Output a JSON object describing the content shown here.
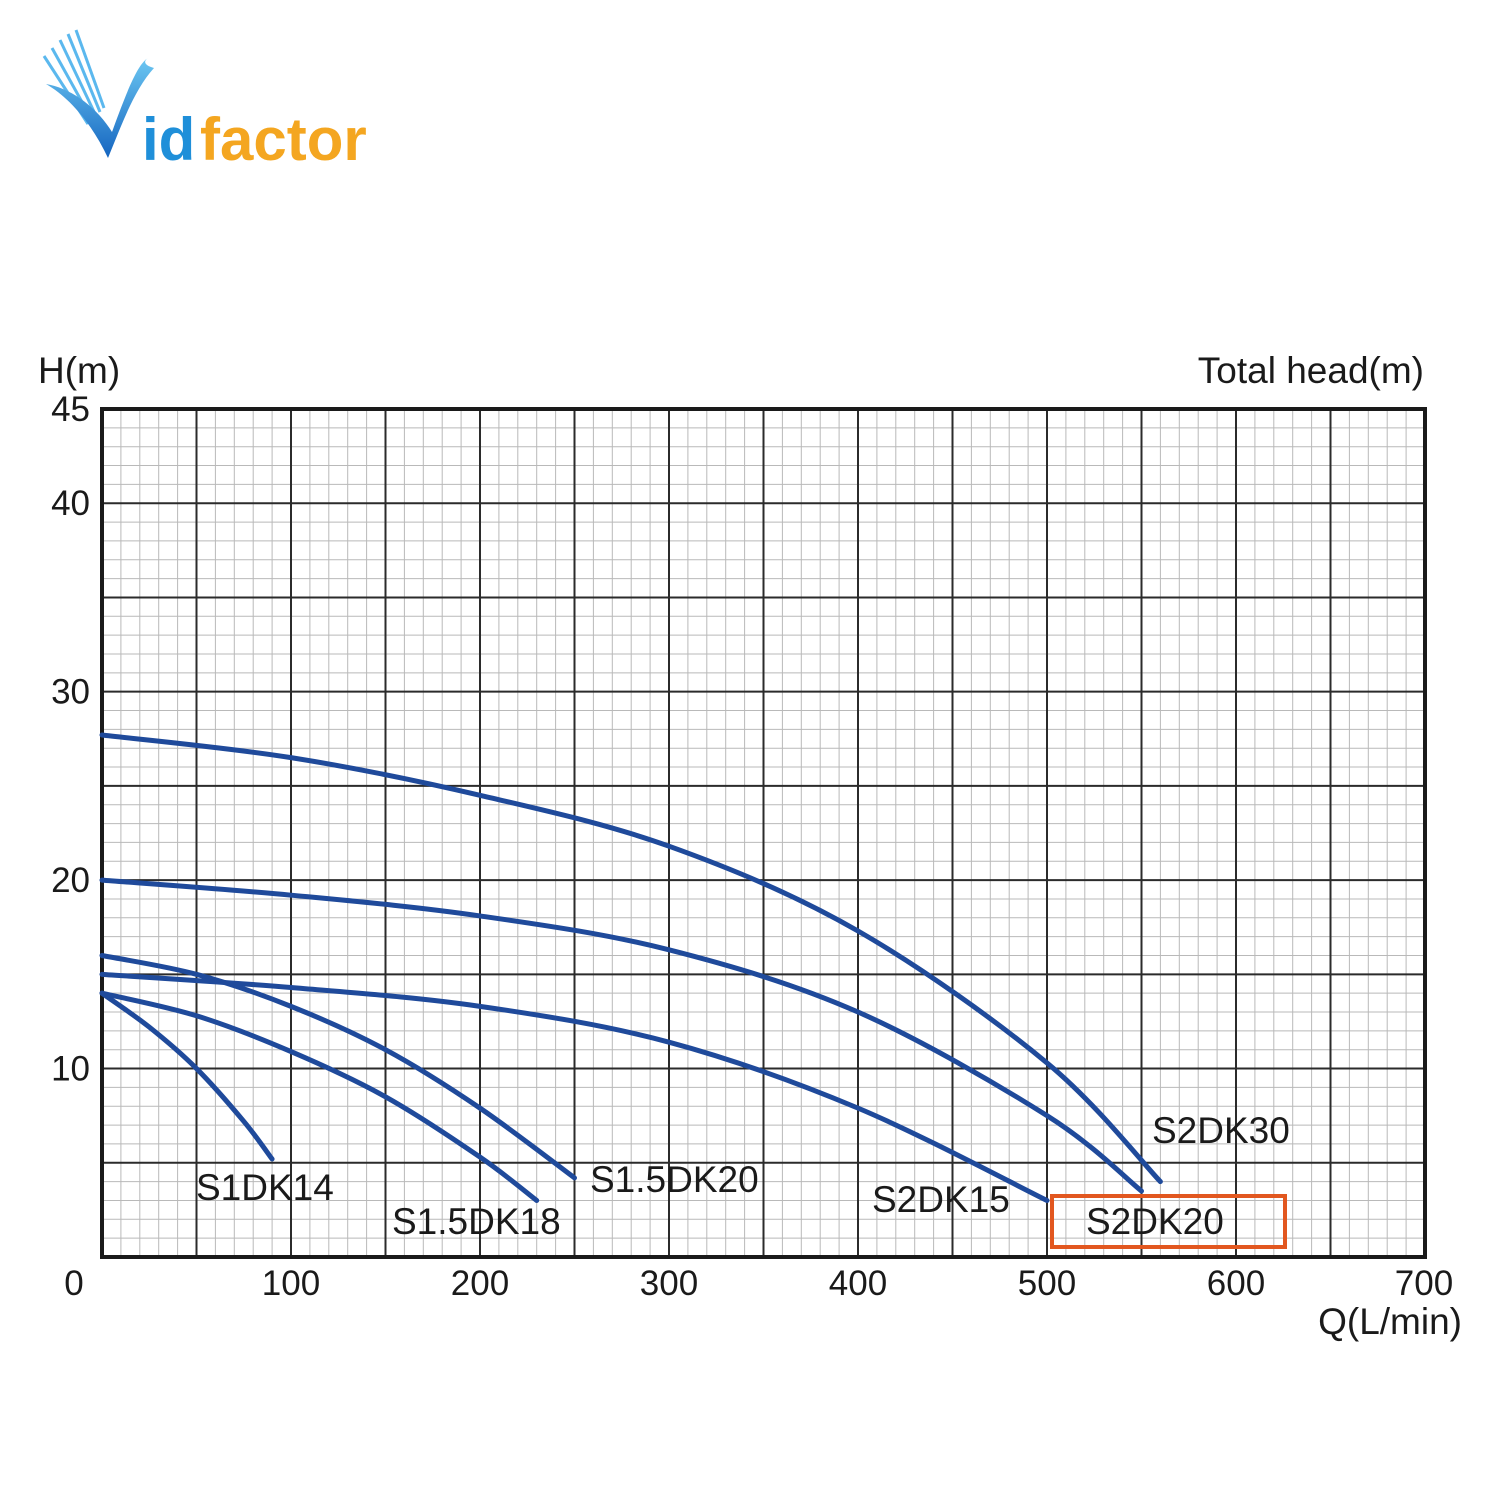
{
  "brand": {
    "logo_text_a": "V",
    "logo_text_b": "id",
    "logo_text_c": "factor",
    "color_blue": "#1f8fd9",
    "color_orange": "#f4a620"
  },
  "colors": {
    "curve": "#1f4a9b",
    "highlight_box": "#e2571f",
    "grid_major": "#2b2b2b",
    "grid_minor": "#b9b9b9"
  },
  "chart_data": {
    "type": "line",
    "title": "",
    "y_axis_label": "H(m)",
    "right_axis_label": "Total head(m)",
    "x_axis_label": "Q(L/min)",
    "xlim": [
      0,
      700
    ],
    "ylim": [
      0,
      45
    ],
    "x_ticks": [
      0,
      100,
      200,
      300,
      400,
      500,
      600,
      700
    ],
    "y_ticks": [
      10,
      20,
      30,
      40,
      45
    ],
    "grid": true,
    "highlighted_series": "S2DK20",
    "series": [
      {
        "name": "S1DK14",
        "x": [
          0,
          25,
          50,
          75,
          90
        ],
        "y": [
          14,
          12.2,
          10,
          7.2,
          5.2
        ]
      },
      {
        "name": "S1.5DK18",
        "x": [
          0,
          50,
          100,
          150,
          200,
          230
        ],
        "y": [
          14,
          12.8,
          10.9,
          8.5,
          5.3,
          3
        ]
      },
      {
        "name": "S1.5DK20",
        "x": [
          0,
          50,
          100,
          150,
          200,
          250
        ],
        "y": [
          16,
          15,
          13.3,
          11,
          7.9,
          4.2
        ]
      },
      {
        "name": "S2DK15",
        "x": [
          0,
          100,
          200,
          300,
          400,
          500
        ],
        "y": [
          15,
          14.3,
          13.3,
          11.4,
          7.9,
          3
        ]
      },
      {
        "name": "S2DK20",
        "x": [
          0,
          100,
          200,
          300,
          400,
          500,
          550
        ],
        "y": [
          20,
          19.2,
          18.1,
          16.3,
          13,
          7.5,
          3.5
        ]
      },
      {
        "name": "S2DK30",
        "x": [
          0,
          100,
          200,
          300,
          400,
          500,
          560
        ],
        "y": [
          27.7,
          26.5,
          24.5,
          21.8,
          17.3,
          10.3,
          4
        ]
      }
    ]
  }
}
